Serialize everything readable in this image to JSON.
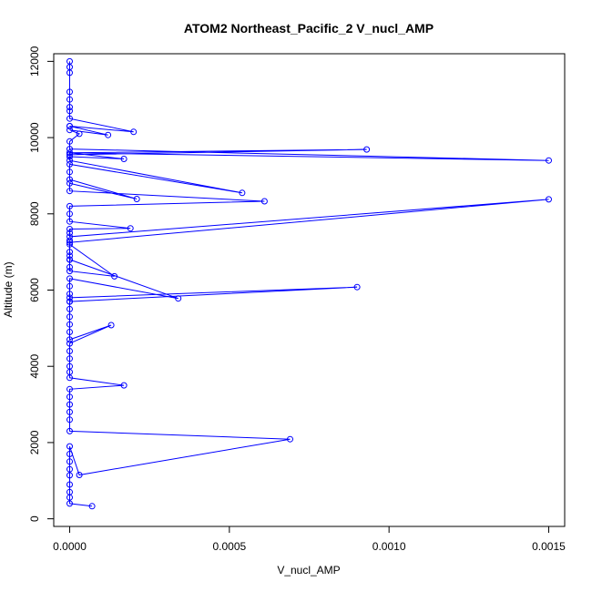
{
  "chart_data": {
    "type": "line",
    "title": "ATOM2 Northeast_Pacific_2 V_nucl_AMP",
    "xlabel": "V_nucl_AMP",
    "ylabel": "Altitude (m)",
    "xlim": [
      -5e-05,
      0.00155
    ],
    "ylim": [
      -200,
      12200
    ],
    "xticks": [
      0,
      0.0005,
      0.001,
      0.0015
    ],
    "xtick_labels": [
      "0.0000",
      "0.0005",
      "0.0010",
      "0.0015"
    ],
    "yticks": [
      0,
      2000,
      4000,
      6000,
      8000,
      10000,
      12000
    ],
    "ytick_labels": [
      "0",
      "2000",
      "4000",
      "6000",
      "8000",
      "10000",
      "12000"
    ],
    "grid": false,
    "marker": "open-circle",
    "colors": {
      "series": "#0000ff",
      "axis": "#000000"
    },
    "series": [
      {
        "x": [
          7e-05,
          0.0,
          0.0,
          0.0,
          0.0,
          0.0,
          0.0,
          0.0,
          0.0,
          0.0,
          3e-05,
          0.00069,
          0.0,
          0.0,
          0.0,
          0.0,
          0.0,
          0.0,
          0.00017,
          0.0,
          0.0,
          0.0,
          0.0,
          0.0,
          0.0,
          0.00013,
          0.0,
          0.0,
          0.0,
          0.0,
          0.0,
          0.0,
          0.0009,
          0.0,
          0.0,
          0.0,
          0.0,
          0.0,
          0.00034,
          0.0,
          0.0,
          0.0,
          0.00014,
          0.0,
          0.0,
          0.0,
          0.0,
          0.0,
          0.0,
          0.0015,
          0.0,
          0.0,
          0.0,
          0.00019,
          0.0,
          0.0,
          0.0,
          0.00061,
          0.0,
          0.0,
          0.00021,
          0.0,
          0.0,
          0.0,
          0.00054,
          0.0,
          0.0,
          0.00017,
          0.0,
          0.0,
          0.00093,
          0.0,
          0.0015,
          0.0,
          0.0,
          3e-05,
          0.0,
          0.00012,
          0.0,
          0.0,
          0.0002,
          0.0,
          0.0,
          0.0,
          0.0,
          0.0,
          0.0,
          0.0,
          0.0
        ],
        "y": [
          330,
          400,
          560,
          700,
          900,
          1140,
          1300,
          1500,
          1700,
          1900,
          1150,
          2090,
          2300,
          2600,
          2800,
          3000,
          3200,
          3400,
          3500,
          3700,
          3850,
          4000,
          4200,
          4400,
          4600,
          5080,
          4700,
          4900,
          5100,
          5300,
          5500,
          5700,
          6080,
          5800,
          5700,
          5900,
          6100,
          6300,
          5780,
          6800,
          6600,
          6500,
          6360,
          7200,
          7000,
          6800,
          6900,
          7300,
          7250,
          8380,
          7400,
          7500,
          7600,
          7620,
          7800,
          8000,
          8200,
          8330,
          8600,
          8800,
          8390,
          8900,
          9100,
          9300,
          8550,
          9400,
          9500,
          9440,
          9600,
          9550,
          9690,
          9600,
          9400,
          9700,
          9900,
          10100,
          10200,
          10070,
          10300,
          10300,
          10150,
          10500,
          10700,
          10800,
          11000,
          11200,
          11700,
          11850,
          12000
        ]
      }
    ]
  }
}
